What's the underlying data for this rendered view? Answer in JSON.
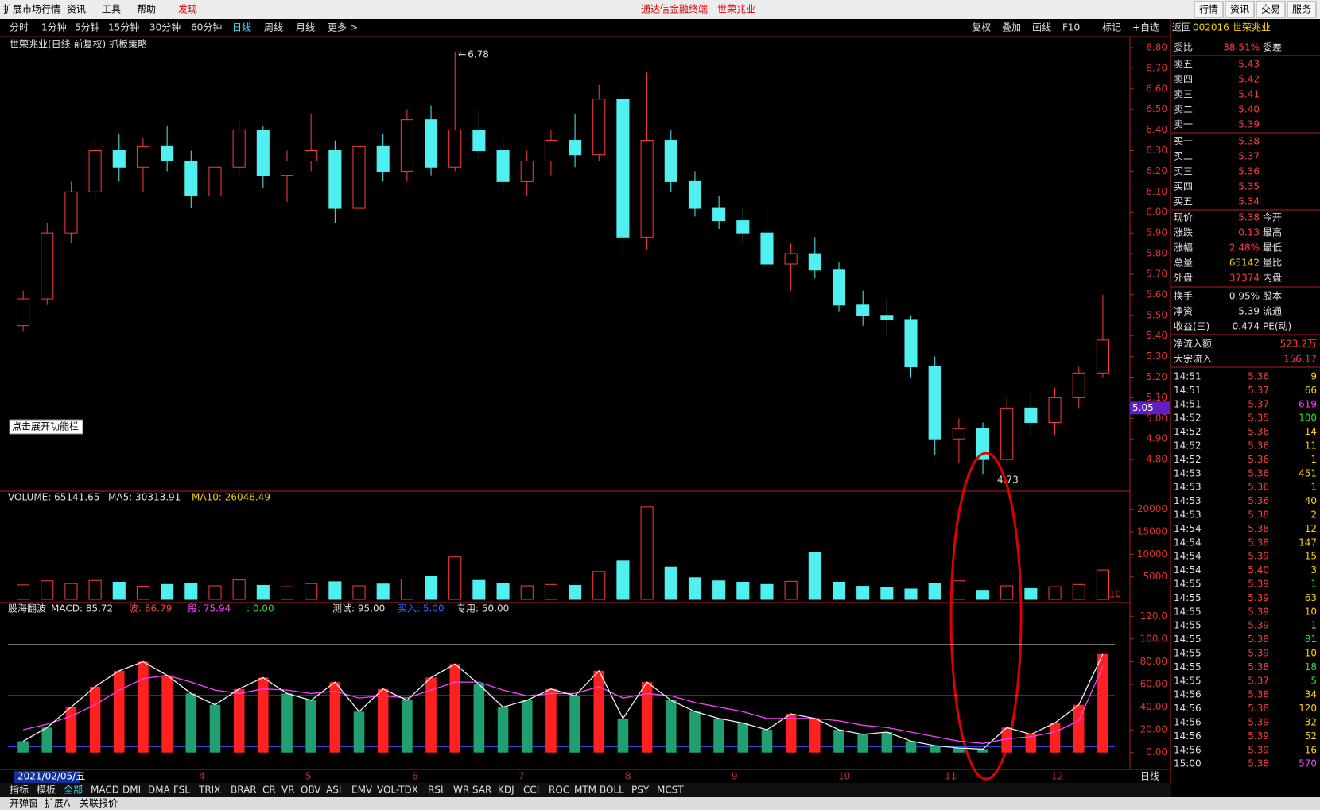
{
  "menu": [
    "扩展市场行情",
    "资讯",
    "工具",
    "帮助",
    "发现"
  ],
  "header": [
    "通达信金融终端",
    "世荣兆业"
  ],
  "buttons": [
    "行情",
    "资讯",
    "交易",
    "服务"
  ],
  "periods": [
    "分时",
    "1分钟",
    "5分钟",
    "15分钟",
    "30分钟",
    "60分钟",
    "日线",
    "周线",
    "月线",
    "更多 >"
  ],
  "tools": [
    "复权",
    "叠加",
    "画线",
    "F10",
    "标记",
    "+自选",
    "返回"
  ],
  "chart_title": "世荣兆业(日线 前复权) 抓板策略",
  "tooltip": "点击展开功能栏",
  "price": {
    "ylim": [
      4.7,
      6.8
    ],
    "yticks": [
      {
        "value": 6.8,
        "label": "6.80"
      },
      {
        "value": 6.7,
        "label": "6.70"
      },
      {
        "value": 6.6,
        "label": "6.60"
      },
      {
        "value": 6.5,
        "label": "6.50"
      },
      {
        "value": 6.4,
        "label": "6.40"
      },
      {
        "value": 6.3,
        "label": "6.30"
      },
      {
        "value": 6.2,
        "label": "6.20"
      },
      {
        "value": 6.1,
        "label": "6.10"
      },
      {
        "value": 6.0,
        "label": "6.00"
      },
      {
        "value": 5.9,
        "label": "5.90"
      },
      {
        "value": 5.8,
        "label": "5.80"
      },
      {
        "value": 5.7,
        "label": "5.70"
      },
      {
        "value": 5.6,
        "label": "5.60"
      },
      {
        "value": 5.5,
        "label": "5.50"
      },
      {
        "value": 5.4,
        "label": "5.40"
      },
      {
        "value": 5.3,
        "label": "5.30"
      },
      {
        "value": 5.2,
        "label": "5.20"
      },
      {
        "value": 5.1,
        "label": "5.10"
      },
      {
        "value": 5.0,
        "label": "5.00"
      },
      {
        "value": 4.9,
        "label": "4.90"
      },
      {
        "value": 4.8,
        "label": "4.80"
      }
    ],
    "high": {
      "value": 6.78,
      "label": "6.78"
    },
    "low": {
      "value": 4.73,
      "label": "4.73"
    },
    "marker": {
      "value": 5.05,
      "label": "5.05"
    },
    "candles": [
      [
        5.45,
        5.62,
        5.42,
        5.58
      ],
      [
        5.58,
        5.95,
        5.55,
        5.9
      ],
      [
        5.9,
        6.15,
        5.85,
        6.1
      ],
      [
        6.1,
        6.35,
        6.05,
        6.3
      ],
      [
        6.3,
        6.38,
        6.15,
        6.22
      ],
      [
        6.22,
        6.36,
        6.1,
        6.32
      ],
      [
        6.32,
        6.42,
        6.2,
        6.25
      ],
      [
        6.25,
        6.3,
        6.02,
        6.08
      ],
      [
        6.08,
        6.28,
        6.0,
        6.22
      ],
      [
        6.22,
        6.45,
        6.18,
        6.4
      ],
      [
        6.4,
        6.42,
        6.12,
        6.18
      ],
      [
        6.18,
        6.3,
        6.05,
        6.25
      ],
      [
        6.25,
        6.48,
        6.2,
        6.3
      ],
      [
        6.3,
        6.35,
        5.95,
        6.02
      ],
      [
        6.02,
        6.4,
        5.98,
        6.32
      ],
      [
        6.32,
        6.38,
        6.15,
        6.2
      ],
      [
        6.2,
        6.5,
        6.15,
        6.45
      ],
      [
        6.45,
        6.52,
        6.18,
        6.22
      ],
      [
        6.22,
        6.78,
        6.2,
        6.4
      ],
      [
        6.4,
        6.5,
        6.25,
        6.3
      ],
      [
        6.3,
        6.36,
        6.1,
        6.15
      ],
      [
        6.15,
        6.3,
        6.08,
        6.25
      ],
      [
        6.25,
        6.4,
        6.18,
        6.35
      ],
      [
        6.35,
        6.48,
        6.22,
        6.28
      ],
      [
        6.28,
        6.62,
        6.25,
        6.55
      ],
      [
        6.55,
        6.6,
        5.8,
        5.88
      ],
      [
        5.88,
        6.68,
        5.82,
        6.35
      ],
      [
        6.35,
        6.4,
        6.1,
        6.15
      ],
      [
        6.15,
        6.2,
        5.98,
        6.02
      ],
      [
        6.02,
        6.08,
        5.92,
        5.96
      ],
      [
        5.96,
        6.02,
        5.85,
        5.9
      ],
      [
        5.9,
        6.05,
        5.7,
        5.75
      ],
      [
        5.75,
        5.85,
        5.62,
        5.8
      ],
      [
        5.8,
        5.88,
        5.68,
        5.72
      ],
      [
        5.72,
        5.76,
        5.52,
        5.55
      ],
      [
        5.55,
        5.62,
        5.45,
        5.5
      ],
      [
        5.5,
        5.58,
        5.4,
        5.48
      ],
      [
        5.48,
        5.5,
        5.2,
        5.25
      ],
      [
        5.25,
        5.3,
        4.82,
        4.9
      ],
      [
        4.9,
        5.0,
        4.78,
        4.95
      ],
      [
        4.95,
        4.98,
        4.73,
        4.8
      ],
      [
        4.8,
        5.1,
        4.78,
        5.05
      ],
      [
        5.05,
        5.12,
        4.92,
        4.98
      ],
      [
        4.98,
        5.15,
        4.92,
        5.1
      ],
      [
        5.1,
        5.25,
        5.05,
        5.22
      ],
      [
        5.22,
        5.6,
        5.2,
        5.38
      ]
    ]
  },
  "volume": {
    "legend": [
      "VOLUME: 65141.65",
      "MA5: 30313.91",
      "MA10: 26046.49"
    ],
    "unit": "X10",
    "ylim": [
      0,
      24000
    ],
    "yticks": [
      5000,
      10000,
      15000,
      20000
    ],
    "values": [
      3200,
      4100,
      3500,
      4200,
      3800,
      2900,
      3300,
      3600,
      3000,
      4300,
      3100,
      2800,
      3500,
      3900,
      3000,
      3400,
      4500,
      5200,
      9400,
      4200,
      3600,
      3000,
      3300,
      3100,
      6200,
      8500,
      20500,
      7200,
      4800,
      4100,
      3800,
      3300,
      4000,
      10500,
      3800,
      2900,
      2600,
      2300,
      3600,
      4100,
      2000,
      3000,
      2400,
      2800,
      3300,
      6514
    ]
  },
  "indicator": {
    "name": "股海翻波",
    "legend": [
      {
        "label": "MACD: 85.72",
        "value": 85.72
      },
      {
        "label": "波: 86.79",
        "value": 86.79
      },
      {
        "label": "段: 75.94",
        "value": 75.94
      },
      {
        "label": ": 0.00",
        "value": 0
      },
      {
        "label": "测试: 95.00",
        "value": 95
      },
      {
        "label": "买入: 5.00",
        "value": 5
      },
      {
        "label": "专用: 50.00",
        "value": 50
      }
    ],
    "ylim": [
      -10,
      130
    ],
    "yticks": [
      {
        "value": 0,
        "label": "0.00"
      },
      {
        "value": 20,
        "label": "20.00"
      },
      {
        "value": 40,
        "label": "40.00"
      },
      {
        "value": 60,
        "label": "60.00"
      },
      {
        "value": 80,
        "label": "80.00"
      },
      {
        "value": 100,
        "label": "100.0"
      },
      {
        "value": 120,
        "label": "120.0"
      }
    ],
    "wave": [
      10,
      22,
      40,
      58,
      72,
      80,
      68,
      52,
      42,
      56,
      66,
      52,
      46,
      62,
      36,
      56,
      46,
      66,
      78,
      60,
      40,
      46,
      56,
      50,
      72,
      30,
      62,
      46,
      36,
      30,
      26,
      20,
      34,
      30,
      20,
      16,
      18,
      10,
      6,
      4,
      3,
      22,
      16,
      26,
      42,
      86.79
    ],
    "segment": [
      20,
      25,
      32,
      42,
      55,
      65,
      68,
      62,
      55,
      52,
      56,
      55,
      52,
      54,
      48,
      50,
      48,
      55,
      62,
      62,
      55,
      50,
      52,
      52,
      58,
      48,
      52,
      50,
      44,
      40,
      36,
      30,
      30,
      30,
      28,
      24,
      22,
      18,
      14,
      10,
      8,
      12,
      14,
      18,
      28,
      75.94
    ]
  },
  "date": "2021/02/05/五",
  "months": [
    "4",
    "5",
    "6",
    "7",
    "8",
    "9",
    "10",
    "11",
    "12"
  ],
  "period_label": "日线",
  "tabs": [
    "指标",
    "模板",
    "全部",
    "MACD",
    "DMI",
    "DMA",
    "FSL",
    "TRIX",
    "BRAR",
    "CR",
    "VR",
    "OBV",
    "ASI",
    "EMV",
    "VOL-TDX",
    "RSI",
    "WR",
    "SAR",
    "KDJ",
    "CCI",
    "ROC",
    "MTM",
    "BOLL",
    "PSY",
    "MCST"
  ],
  "bottom": [
    "开弹窗",
    "扩展A",
    "关联报价"
  ],
  "quote": {
    "code": "002016",
    "name": "世荣兆业",
    "ratio": {
      "label": "委比",
      "value": "38.51%",
      "right": "委差"
    },
    "asks": [
      {
        "label": "卖五",
        "price": "5.43"
      },
      {
        "label": "卖四",
        "price": "5.42"
      },
      {
        "label": "卖三",
        "price": "5.41"
      },
      {
        "label": "卖二",
        "price": "5.40"
      },
      {
        "label": "卖一",
        "price": "5.39"
      }
    ],
    "bids": [
      {
        "label": "买一",
        "price": "5.38"
      },
      {
        "label": "买二",
        "price": "5.37"
      },
      {
        "label": "买三",
        "price": "5.36"
      },
      {
        "label": "买四",
        "price": "5.35"
      },
      {
        "label": "买五",
        "price": "5.34"
      }
    ],
    "stats": [
      {
        "label": "现价",
        "value": "5.38",
        "right": "今开"
      },
      {
        "label": "涨跌",
        "value": "0.13",
        "right": "最高"
      },
      {
        "label": "涨幅",
        "value": "2.48%",
        "right": "最低"
      },
      {
        "label": "总量",
        "value": "65142",
        "right": "量比"
      },
      {
        "label": "外盘",
        "value": "37374",
        "right": "内盘"
      },
      {
        "label": "换手",
        "value": "0.95%",
        "right": "股本"
      },
      {
        "label": "净资",
        "value": "5.39",
        "right": "流通"
      },
      {
        "label": "收益(三)",
        "value": "0.474",
        "right": "PE(动)"
      }
    ],
    "flows": [
      {
        "label": "净流入额",
        "value": "523.2万"
      },
      {
        "label": "大宗流入",
        "value": "156.17"
      }
    ]
  },
  "trades": [
    [
      "14:51",
      "5.36",
      9
    ],
    [
      "14:51",
      "5.37",
      66
    ],
    [
      "14:51",
      "5.37",
      619
    ],
    [
      "14:52",
      "5.35",
      100
    ],
    [
      "14:52",
      "5.36",
      14
    ],
    [
      "14:52",
      "5.36",
      11
    ],
    [
      "14:52",
      "5.36",
      1
    ],
    [
      "14:53",
      "5.36",
      451
    ],
    [
      "14:53",
      "5.36",
      1
    ],
    [
      "14:53",
      "5.36",
      40
    ],
    [
      "14:53",
      "5.38",
      2
    ],
    [
      "14:54",
      "5.38",
      12
    ],
    [
      "14:54",
      "5.38",
      147
    ],
    [
      "14:54",
      "5.39",
      15
    ],
    [
      "14:54",
      "5.40",
      3
    ],
    [
      "14:55",
      "5.39",
      1
    ],
    [
      "14:55",
      "5.39",
      63
    ],
    [
      "14:55",
      "5.39",
      10
    ],
    [
      "14:55",
      "5.39",
      1
    ],
    [
      "14:55",
      "5.38",
      81
    ],
    [
      "14:55",
      "5.39",
      10
    ],
    [
      "14:55",
      "5.38",
      18
    ],
    [
      "14:55",
      "5.37",
      5
    ],
    [
      "14:56",
      "5.38",
      34
    ],
    [
      "14:56",
      "5.38",
      120
    ],
    [
      "14:56",
      "5.39",
      32
    ],
    [
      "14:56",
      "5.39",
      52
    ],
    [
      "14:56",
      "5.39",
      16
    ],
    [
      "15:00",
      "5.38",
      570
    ]
  ]
}
